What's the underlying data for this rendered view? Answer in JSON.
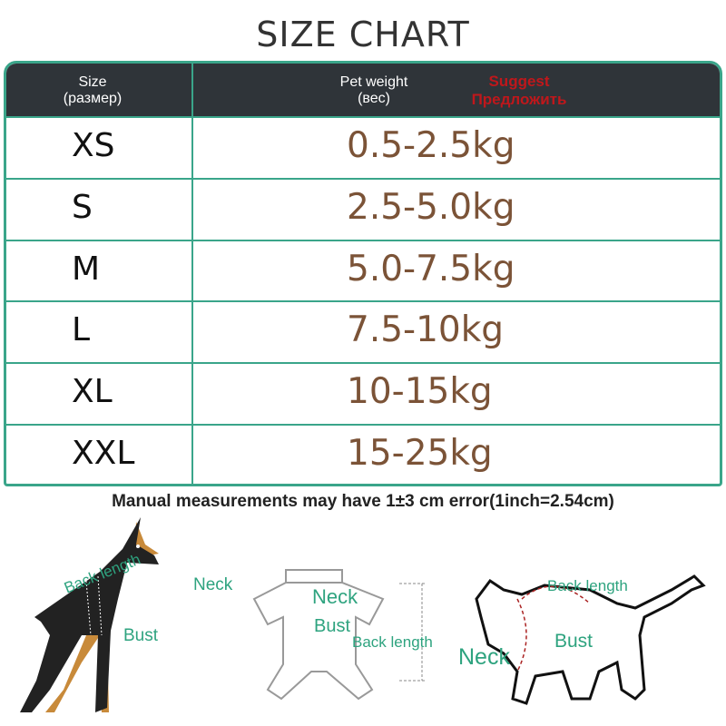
{
  "title": "SIZE CHART",
  "table": {
    "headers": {
      "size": "Size",
      "size_ru": "(размер)",
      "weight": "Pet weight",
      "weight_ru": "(вес)",
      "suggest": "Suggest",
      "suggest_ru": "Предложить"
    },
    "rows": [
      {
        "size": "XS",
        "weight": "0.5-2.5kg"
      },
      {
        "size": "S",
        "weight": "2.5-5.0kg"
      },
      {
        "size": "M",
        "weight": "5.0-7.5kg"
      },
      {
        "size": "L",
        "weight": "7.5-10kg"
      },
      {
        "size": "XL",
        "weight": "10-15kg"
      },
      {
        "size": "XXL",
        "weight": "15-25kg"
      }
    ]
  },
  "note": "Manual measurements may have 1±3 cm error(1inch=2.54cm)",
  "diagrams": {
    "dog": {
      "back": "Back length",
      "neck": "Neck",
      "bust": "Bust"
    },
    "garment": {
      "neck": "Neck",
      "bust": "Bust",
      "back": "Back length"
    },
    "cat": {
      "back": "Back length",
      "neck": "Neck",
      "bust": "Bust"
    }
  },
  "colors": {
    "border": "#3aa58a",
    "header_bg": "#2f3439",
    "weight_text": "#7b5337",
    "suggest": "#c0171b",
    "label": "#2ea37f"
  }
}
